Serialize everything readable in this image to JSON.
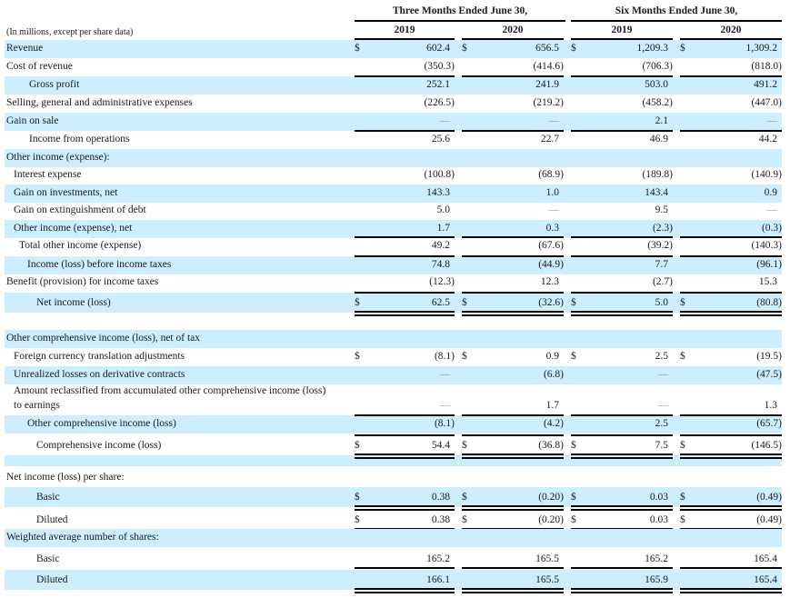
{
  "header": {
    "units_note": "(In millions, except per share data)",
    "period_groups": [
      {
        "label": "Three Months Ended June 30,",
        "years": [
          "2019",
          "2020"
        ]
      },
      {
        "label": "Six Months Ended June 30,",
        "years": [
          "2019",
          "2020"
        ]
      }
    ]
  },
  "rows": [
    {
      "label": "Revenue",
      "values": [
        "602.4",
        "656.5",
        "1,209.3",
        "1,309.2"
      ],
      "dollar": true
    },
    {
      "label": "Cost of revenue",
      "values": [
        "(350.3)",
        "(414.6)",
        "(706.3)",
        "(818.0)"
      ]
    },
    {
      "label": "Gross profit",
      "values": [
        "252.1",
        "241.9",
        "503.0",
        "491.2"
      ]
    },
    {
      "label": "Selling, general and administrative expenses",
      "values": [
        "(226.5)",
        "(219.2)",
        "(458.2)",
        "(447.0)"
      ]
    },
    {
      "label": "Gain on sale",
      "values": [
        "—",
        "—",
        "2.1",
        "—"
      ]
    },
    {
      "label": "Income from operations",
      "values": [
        "25.6",
        "22.7",
        "46.9",
        "44.2"
      ]
    },
    {
      "label": "Other income (expense):",
      "values": [
        "",
        "",
        "",
        ""
      ]
    },
    {
      "label": "Interest expense",
      "values": [
        "(100.8)",
        "(68.9)",
        "(189.8)",
        "(140.9)"
      ]
    },
    {
      "label": "Gain on investments, net",
      "values": [
        "143.3",
        "1.0",
        "143.4",
        "0.9"
      ]
    },
    {
      "label": "Gain on extinguishment of debt",
      "values": [
        "5.0",
        "—",
        "9.5",
        "—"
      ]
    },
    {
      "label": "Other income (expense), net",
      "values": [
        "1.7",
        "0.3",
        "(2.3)",
        "(0.3)"
      ]
    },
    {
      "label": "Total other income (expense)",
      "values": [
        "49.2",
        "(67.6)",
        "(39.2)",
        "(140.3)"
      ]
    },
    {
      "label": "Income (loss) before income taxes",
      "values": [
        "74.8",
        "(44.9)",
        "7.7",
        "(96.1)"
      ]
    },
    {
      "label": "Benefit (provision) for income taxes",
      "values": [
        "(12.3)",
        "12.3",
        "(2.7)",
        "15.3"
      ]
    },
    {
      "label": "Net income (loss)",
      "values": [
        "62.5",
        "(32.6)",
        "5.0",
        "(80.8)"
      ],
      "dollar": true
    },
    {
      "label": "Other comprehensive income (loss), net of tax",
      "values": [
        "",
        "",
        "",
        ""
      ]
    },
    {
      "label": "Foreign currency translation adjustments",
      "values": [
        "(8.1)",
        "0.9",
        "2.5",
        "(19.5)"
      ],
      "dollar": true
    },
    {
      "label": "Unrealized losses on derivative contracts",
      "values": [
        "—",
        "(6.8)",
        "—",
        "(47.5)"
      ]
    },
    {
      "label": "Amount reclassified from accumulated other comprehensive income (loss)",
      "label_line2": "to earnings",
      "values": [
        "—",
        "1.7",
        "—",
        "1.3"
      ]
    },
    {
      "label": "Other comprehensive income (loss)",
      "values": [
        "(8.1)",
        "(4.2)",
        "2.5",
        "(65.7)"
      ]
    },
    {
      "label": "Comprehensive income (loss)",
      "values": [
        "54.4",
        "(36.8)",
        "7.5",
        "(146.5)"
      ],
      "dollar": true
    },
    {
      "label": "Net income (loss) per share:",
      "values": [
        "",
        "",
        "",
        ""
      ]
    },
    {
      "label": "Basic",
      "values": [
        "0.38",
        "(0.20)",
        "0.03",
        "(0.49)"
      ],
      "dollar": true
    },
    {
      "label": "Diluted",
      "values": [
        "0.38",
        "(0.20)",
        "0.03",
        "(0.49)"
      ],
      "dollar": true
    },
    {
      "label": "Weighted average number of shares:",
      "values": [
        "",
        "",
        "",
        ""
      ]
    },
    {
      "label": "Basic",
      "values": [
        "165.2",
        "165.5",
        "165.2",
        "165.4"
      ]
    },
    {
      "label": "Diluted",
      "values": [
        "166.1",
        "165.5",
        "165.9",
        "165.4"
      ]
    }
  ],
  "currency_symbol": "$",
  "colors": {
    "row_shade": "#cceeff",
    "rule": "#000000",
    "dash": "#999999"
  }
}
